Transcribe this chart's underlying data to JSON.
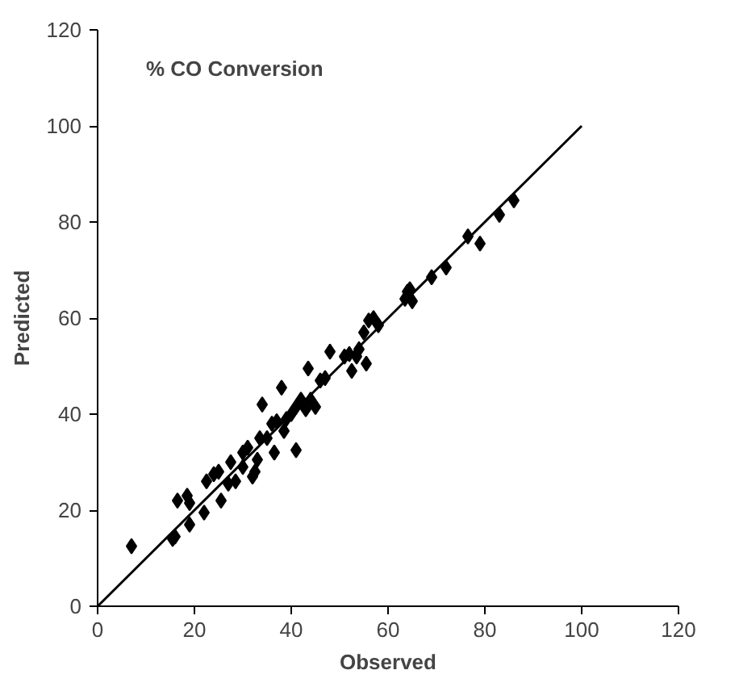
{
  "chart_data": {
    "type": "scatter",
    "xlabel": "Observed",
    "ylabel": "Predicted",
    "annotations": [
      "% CO Conversion"
    ],
    "xlim": [
      0,
      120
    ],
    "ylim": [
      0,
      120
    ],
    "xticks": [
      0,
      20,
      40,
      60,
      80,
      100,
      120
    ],
    "yticks": [
      0,
      20,
      40,
      60,
      80,
      100,
      120
    ],
    "grid": false,
    "marker": "diamond",
    "series": [
      {
        "color": "#000000",
        "x": [
          7,
          15.5,
          16,
          16.5,
          18.5,
          19,
          19,
          22,
          22.5,
          24,
          25,
          25.5,
          27,
          27.5,
          28.5,
          30,
          30,
          31,
          32,
          32.5,
          33,
          33.5,
          34,
          35,
          36,
          36.5,
          37,
          38,
          38.5,
          39,
          40,
          41,
          41,
          42,
          42.5,
          43,
          43.5,
          44,
          45,
          46,
          47,
          48,
          51,
          52,
          52.5,
          53.5,
          54,
          55,
          55.5,
          56,
          57,
          58,
          63.5,
          64,
          64.5,
          65,
          69,
          72,
          76.5,
          79,
          83,
          86
        ],
        "values": [
          12.5,
          14,
          14.5,
          22,
          23,
          21.5,
          17,
          19.5,
          26,
          27.5,
          28,
          22,
          25.5,
          30,
          26,
          29,
          32,
          33,
          27,
          28,
          30.5,
          35,
          42,
          35,
          38,
          32,
          38.5,
          45.5,
          36.5,
          39,
          40,
          32.5,
          41.5,
          43,
          42,
          41,
          49.5,
          43,
          41.5,
          47,
          47.5,
          53,
          52,
          52.5,
          49,
          52,
          53.5,
          57,
          50.5,
          59.5,
          60,
          58.5,
          64,
          65.5,
          66,
          63.5,
          68.5,
          70.5,
          77,
          75.5,
          81.5,
          84.5
        ]
      },
      {
        "type": "line",
        "color": "#000000",
        "marker": "none",
        "line_style": "solid",
        "x": [
          0,
          100
        ],
        "values": [
          0,
          100
        ]
      }
    ]
  }
}
